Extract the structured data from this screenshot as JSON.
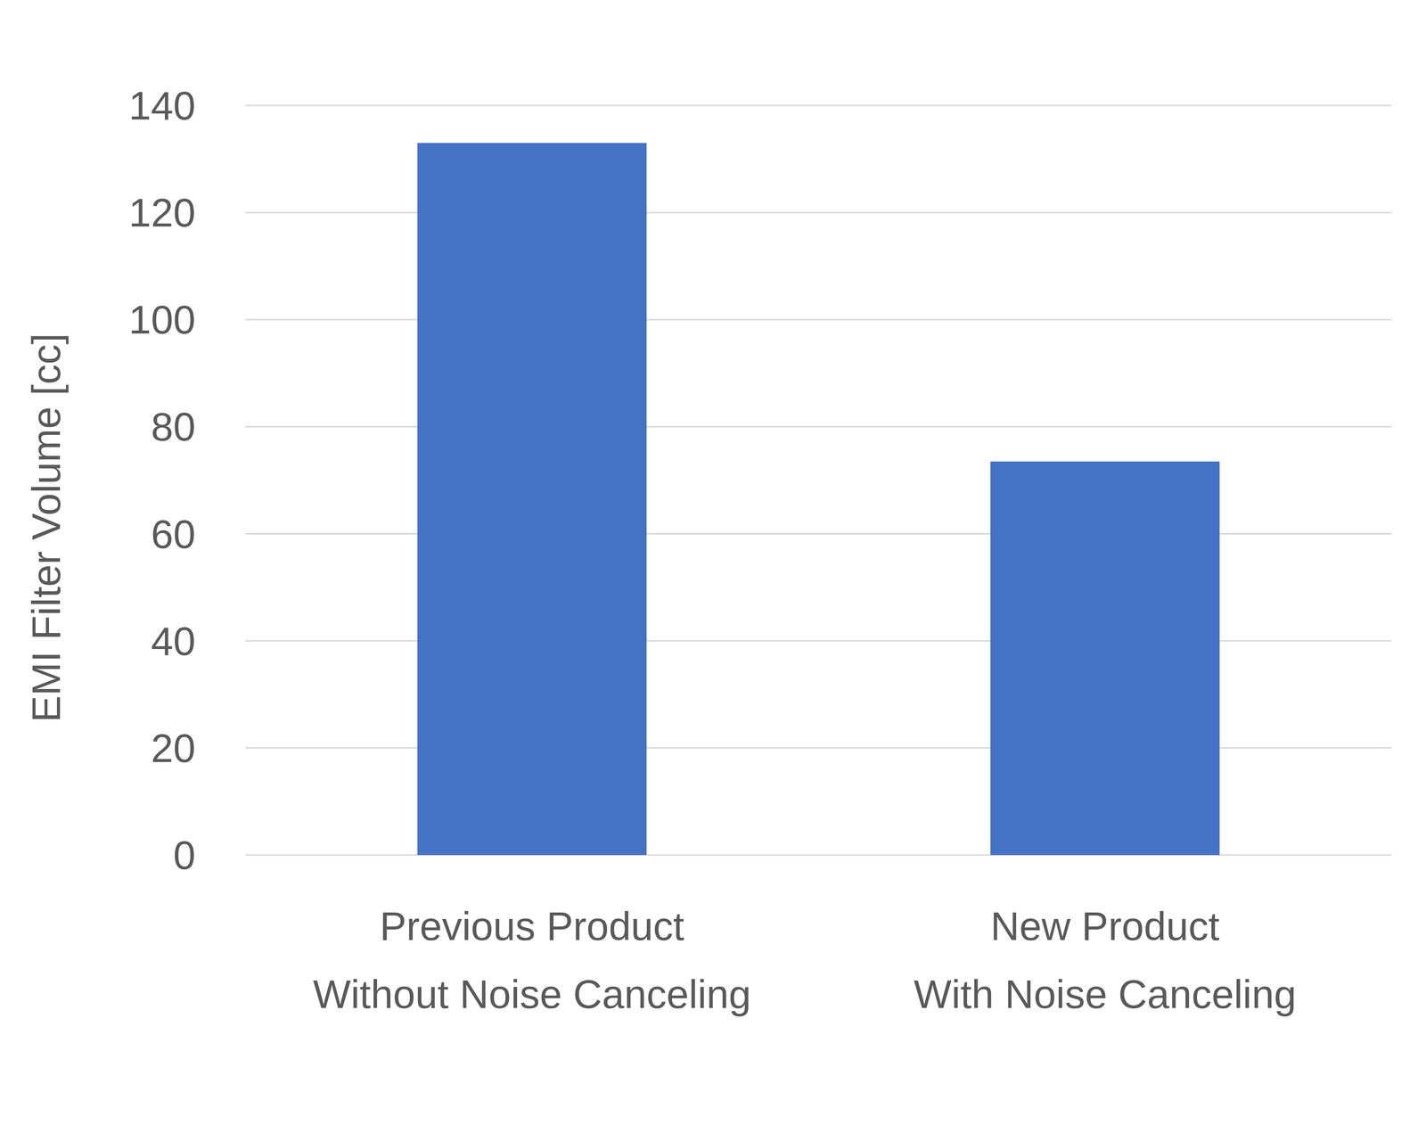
{
  "chart_data": {
    "type": "bar",
    "y_label": "EMI Filter Volume [cc]",
    "categories": [
      "Previous Product\nWithout Noise Canceling",
      "New Product\nWith Noise Canceling"
    ],
    "values": [
      133,
      73.5
    ],
    "color": "#4472c4",
    "ylim": [
      0,
      140
    ],
    "yticks": [
      0,
      20,
      40,
      60,
      80,
      100,
      120,
      140
    ],
    "grid": true
  }
}
